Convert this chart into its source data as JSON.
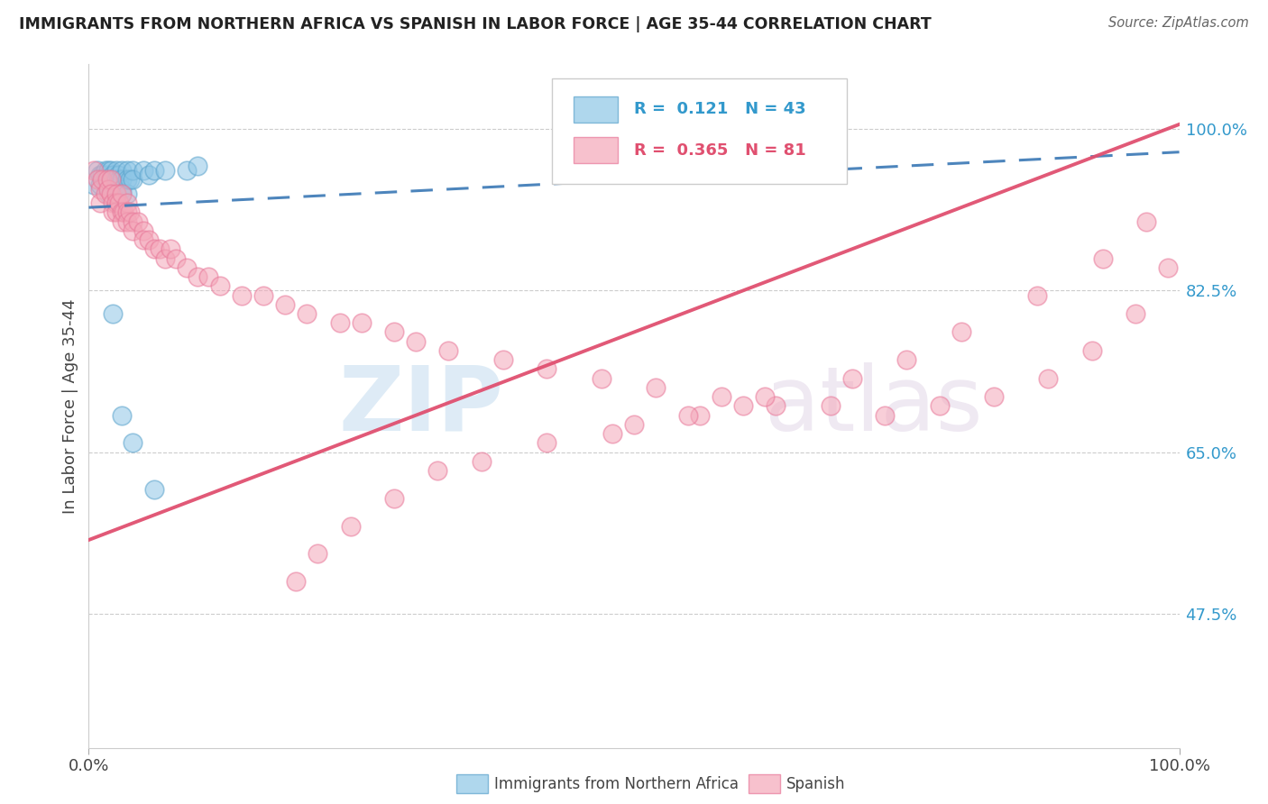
{
  "title": "IMMIGRANTS FROM NORTHERN AFRICA VS SPANISH IN LABOR FORCE | AGE 35-44 CORRELATION CHART",
  "source": "Source: ZipAtlas.com",
  "ylabel": "In Labor Force | Age 35-44",
  "xlim": [
    0.0,
    1.0
  ],
  "ylim": [
    0.33,
    1.07
  ],
  "yticks": [
    0.475,
    0.65,
    0.825,
    1.0
  ],
  "ytick_labels": [
    "47.5%",
    "65.0%",
    "82.5%",
    "100.0%"
  ],
  "xtick_labels": [
    "0.0%",
    "100.0%"
  ],
  "legend_labels": [
    "Immigrants from Northern Africa",
    "Spanish"
  ],
  "r_blue": "0.121",
  "n_blue": "43",
  "r_pink": "0.365",
  "n_pink": "81",
  "blue_color": "#8ec6e6",
  "pink_color": "#f4a7b9",
  "blue_edge_color": "#5ba3cc",
  "pink_edge_color": "#e8799a",
  "blue_line_color": "#3a78b5",
  "pink_line_color": "#e05070",
  "watermark_zip_color": "#c8dff0",
  "watermark_atlas_color": "#d8c8d8",
  "blue_scatter_x": [
    0.005,
    0.008,
    0.01,
    0.01,
    0.012,
    0.015,
    0.015,
    0.017,
    0.018,
    0.018,
    0.02,
    0.02,
    0.02,
    0.02,
    0.022,
    0.022,
    0.025,
    0.025,
    0.025,
    0.025,
    0.025,
    0.027,
    0.028,
    0.03,
    0.03,
    0.03,
    0.03,
    0.035,
    0.035,
    0.035,
    0.038,
    0.04,
    0.04,
    0.05,
    0.055,
    0.06,
    0.07,
    0.09,
    0.1,
    0.022,
    0.03,
    0.04,
    0.06
  ],
  "blue_scatter_y": [
    0.94,
    0.955,
    0.95,
    0.94,
    0.95,
    0.955,
    0.945,
    0.95,
    0.93,
    0.955,
    0.955,
    0.945,
    0.935,
    0.93,
    0.95,
    0.94,
    0.955,
    0.945,
    0.94,
    0.93,
    0.92,
    0.95,
    0.945,
    0.955,
    0.945,
    0.935,
    0.93,
    0.955,
    0.945,
    0.93,
    0.945,
    0.955,
    0.945,
    0.955,
    0.95,
    0.955,
    0.955,
    0.955,
    0.96,
    0.8,
    0.69,
    0.66,
    0.61
  ],
  "pink_scatter_x": [
    0.005,
    0.008,
    0.01,
    0.01,
    0.012,
    0.015,
    0.017,
    0.018,
    0.02,
    0.02,
    0.022,
    0.022,
    0.025,
    0.025,
    0.025,
    0.028,
    0.03,
    0.03,
    0.03,
    0.032,
    0.035,
    0.035,
    0.035,
    0.038,
    0.04,
    0.04,
    0.045,
    0.05,
    0.05,
    0.055,
    0.06,
    0.065,
    0.07,
    0.075,
    0.08,
    0.09,
    0.1,
    0.11,
    0.12,
    0.14,
    0.16,
    0.18,
    0.2,
    0.23,
    0.25,
    0.28,
    0.3,
    0.33,
    0.38,
    0.42,
    0.47,
    0.52,
    0.58,
    0.63,
    0.68,
    0.73,
    0.78,
    0.83,
    0.88,
    0.92,
    0.96,
    0.99,
    0.56,
    0.62,
    0.7,
    0.75,
    0.8,
    0.87,
    0.93,
    0.97,
    0.5,
    0.55,
    0.6,
    0.42,
    0.48,
    0.36,
    0.32,
    0.28,
    0.24,
    0.21,
    0.19
  ],
  "pink_scatter_y": [
    0.955,
    0.945,
    0.935,
    0.92,
    0.945,
    0.93,
    0.945,
    0.935,
    0.945,
    0.93,
    0.92,
    0.91,
    0.93,
    0.92,
    0.91,
    0.92,
    0.93,
    0.91,
    0.9,
    0.91,
    0.92,
    0.91,
    0.9,
    0.91,
    0.9,
    0.89,
    0.9,
    0.89,
    0.88,
    0.88,
    0.87,
    0.87,
    0.86,
    0.87,
    0.86,
    0.85,
    0.84,
    0.84,
    0.83,
    0.82,
    0.82,
    0.81,
    0.8,
    0.79,
    0.79,
    0.78,
    0.77,
    0.76,
    0.75,
    0.74,
    0.73,
    0.72,
    0.71,
    0.7,
    0.7,
    0.69,
    0.7,
    0.71,
    0.73,
    0.76,
    0.8,
    0.85,
    0.69,
    0.71,
    0.73,
    0.75,
    0.78,
    0.82,
    0.86,
    0.9,
    0.68,
    0.69,
    0.7,
    0.66,
    0.67,
    0.64,
    0.63,
    0.6,
    0.57,
    0.54,
    0.51
  ],
  "blue_trend_x0": 0.0,
  "blue_trend_y0": 0.915,
  "blue_trend_x1": 1.0,
  "blue_trend_y1": 0.975,
  "pink_trend_x0": 0.0,
  "pink_trend_y0": 0.555,
  "pink_trend_x1": 1.0,
  "pink_trend_y1": 1.005
}
